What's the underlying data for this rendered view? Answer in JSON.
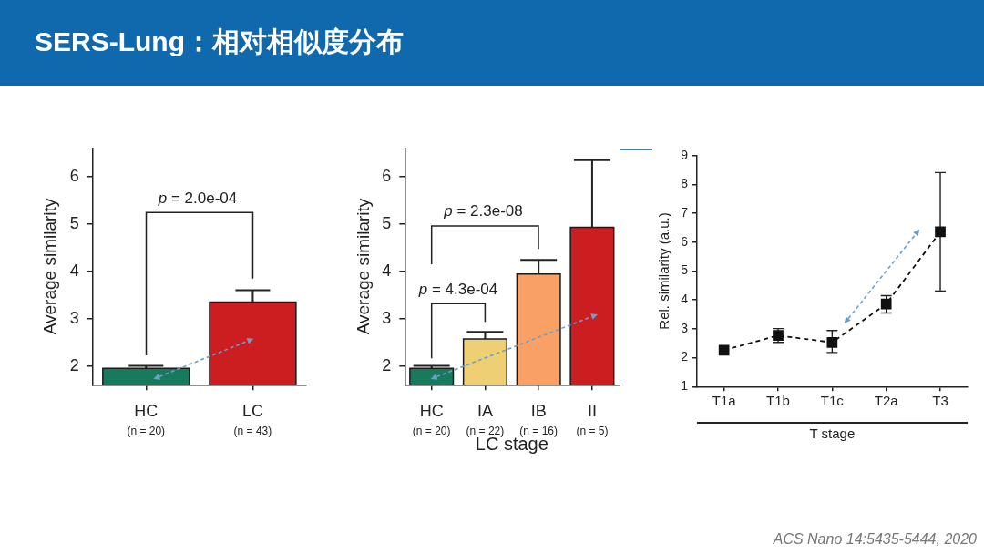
{
  "chart_data": [
    {
      "type": "other",
      "title": "SERS-Lung：相对相似度分布"
    },
    {
      "type": "bar",
      "categories": [
        "HC\n(n = 20)",
        "LC\n(n = 43)"
      ],
      "values": [
        1.95,
        3.35
      ],
      "colors": [
        "#177a5c",
        "#cc1d21"
      ],
      "errors": [
        [
          1.95,
          2.0
        ],
        [
          3.35,
          3.6
        ]
      ],
      "ylabel": "Average similarity",
      "ylim": [
        1.6,
        6.6
      ],
      "yticks": [
        2,
        3,
        4,
        5,
        6
      ],
      "annotations": [
        "p = 2.0e-04"
      ]
    },
    {
      "type": "bar",
      "categories": [
        "HC\n(n = 20)",
        "IA\n(n = 22)",
        "IB\n(n = 16)",
        "II\n(n = 5)"
      ],
      "values": [
        1.95,
        2.57,
        3.94,
        4.93
      ],
      "colors": [
        "#177a5c",
        "#efcf74",
        "#f8a066",
        "#cc1d21"
      ],
      "errors": [
        [
          1.95,
          2.0
        ],
        [
          2.57,
          2.72
        ],
        [
          3.94,
          4.24
        ],
        [
          4.93,
          6.35
        ]
      ],
      "xlabel": "LC stage",
      "ylabel": "Average similarity",
      "ylim": [
        1.6,
        6.6
      ],
      "yticks": [
        2,
        3,
        4,
        5,
        6
      ],
      "annotations": [
        "p = 2.3e-08",
        "p = 4.3e-04"
      ]
    },
    {
      "type": "line",
      "categories": [
        "T1a",
        "T1b",
        "T1c",
        "T2a",
        "T3"
      ],
      "values": [
        2.26,
        2.77,
        2.53,
        3.86,
        6.36
      ],
      "color": "#111111",
      "errors": [
        null,
        [
          2.53,
          3.01
        ],
        [
          2.18,
          2.94
        ],
        [
          3.55,
          4.15
        ],
        [
          4.31,
          8.41
        ]
      ],
      "marker": "square",
      "line_style": "dashed",
      "xlabel": "T stage",
      "ylabel": "Rel. similarity (a.u.)",
      "ylim": [
        1,
        9
      ],
      "yticks": [
        1,
        2,
        3,
        4,
        5,
        6,
        7,
        8,
        9
      ],
      "annotations": [
        "ACS Nano 14:5435-5444, 2020"
      ]
    }
  ]
}
